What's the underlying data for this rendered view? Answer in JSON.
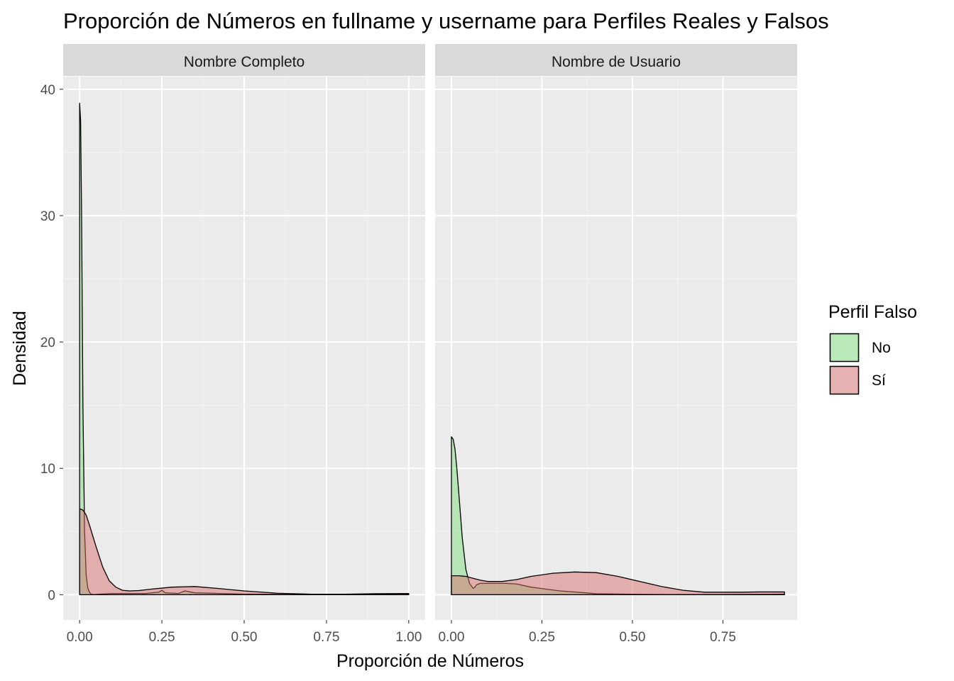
{
  "title": "Proporción de Números en fullname y username para Perfiles Reales y Falsos",
  "xlabel": "Proporción de Números",
  "ylabel": "Densidad",
  "legend": {
    "title": "Perfil Falso",
    "items": [
      {
        "label": "No",
        "color": "#7fdf7f"
      },
      {
        "label": "Sí",
        "color": "#d86f6f"
      }
    ]
  },
  "chart_data": {
    "type": "area",
    "subtype": "density, faceted",
    "ylim": [
      -2,
      41
    ],
    "yticks": [
      0,
      10,
      20,
      30,
      40
    ],
    "ytick_labels": [
      "0",
      "10",
      "20",
      "30",
      "40"
    ],
    "grid": true,
    "legend_position": "right",
    "fill_opacity": 0.5,
    "panels": [
      {
        "strip": "Nombre Completo",
        "xlim": [
          -0.05,
          1.05
        ],
        "xticks": [
          0,
          0.25,
          0.5,
          0.75,
          1.0
        ],
        "xtick_labels": [
          "0.00",
          "0.25",
          "0.50",
          "0.75",
          "1.00"
        ],
        "series": [
          {
            "name": "No",
            "x": [
              0,
              0.003,
              0.006,
              0.01,
              0.015,
              0.02,
              0.025,
              0.03,
              0.035,
              0.04,
              0.05,
              0.06,
              0.1,
              0.15,
              0.2,
              0.24,
              0.25,
              0.26,
              0.3,
              0.32,
              0.35,
              0.5,
              0.75,
              1.0
            ],
            "y": [
              38.9,
              37.5,
              30,
              15,
              5,
              1.5,
              0.5,
              0.2,
              0.05,
              0.02,
              0.02,
              0.05,
              0.1,
              0.1,
              0.1,
              0.2,
              0.35,
              0.15,
              0.1,
              0.3,
              0.15,
              0.05,
              0.02,
              0.05
            ]
          },
          {
            "name": "Sí",
            "x": [
              0,
              0.01,
              0.02,
              0.03,
              0.05,
              0.07,
              0.09,
              0.11,
              0.13,
              0.15,
              0.18,
              0.22,
              0.28,
              0.35,
              0.42,
              0.5,
              0.6,
              0.7,
              0.8,
              0.9,
              1.0
            ],
            "y": [
              6.8,
              6.7,
              6.3,
              5.5,
              3.8,
              2.2,
              1.1,
              0.6,
              0.35,
              0.3,
              0.33,
              0.45,
              0.6,
              0.65,
              0.5,
              0.3,
              0.12,
              0.05,
              0.04,
              0.08,
              0.1
            ]
          }
        ]
      },
      {
        "strip": "Nombre de Usuario",
        "xlim": [
          -0.045,
          0.955
        ],
        "xticks": [
          0,
          0.25,
          0.5,
          0.75
        ],
        "xtick_labels": [
          "0.00",
          "0.25",
          "0.50",
          "0.75"
        ],
        "series": [
          {
            "name": "No",
            "x": [
              0,
              0.005,
              0.01,
              0.015,
              0.02,
              0.03,
              0.04,
              0.05,
              0.06,
              0.065,
              0.07,
              0.08,
              0.1,
              0.15,
              0.18,
              0.22,
              0.3,
              0.37,
              0.4,
              0.5,
              0.6,
              0.75,
              0.92
            ],
            "y": [
              12.5,
              12.3,
              11.5,
              10,
              8.2,
              4.5,
              2,
              0.9,
              0.5,
              0.6,
              0.8,
              0.9,
              0.9,
              0.9,
              0.85,
              0.6,
              0.3,
              0.15,
              0.08,
              0.04,
              0.02,
              0.02,
              0.05
            ]
          },
          {
            "name": "Sí",
            "x": [
              0,
              0.01,
              0.02,
              0.04,
              0.06,
              0.08,
              0.1,
              0.14,
              0.18,
              0.22,
              0.28,
              0.34,
              0.4,
              0.46,
              0.52,
              0.58,
              0.64,
              0.7,
              0.75,
              0.8,
              0.85,
              0.92
            ],
            "y": [
              1.5,
              1.5,
              1.5,
              1.45,
              1.3,
              1.15,
              1.05,
              1.05,
              1.2,
              1.45,
              1.7,
              1.8,
              1.75,
              1.45,
              1.05,
              0.65,
              0.35,
              0.2,
              0.2,
              0.2,
              0.22,
              0.22
            ]
          }
        ]
      }
    ]
  }
}
